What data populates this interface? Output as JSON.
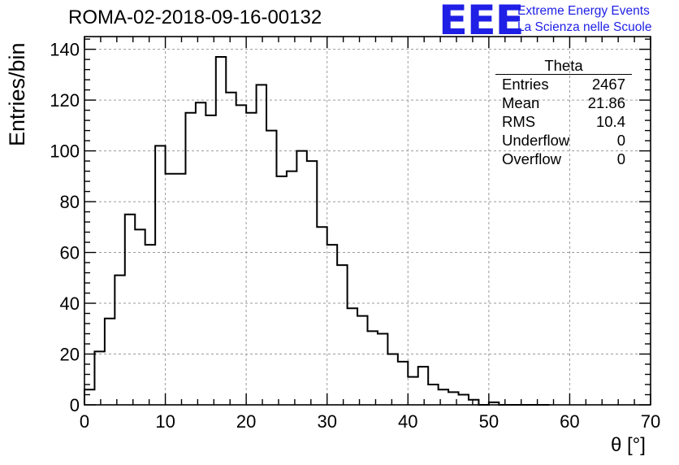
{
  "header": {
    "run_title": "ROMA-02-2018-09-16-00132",
    "logo_text": "EEE",
    "tagline_1": "Extreme Energy Events",
    "tagline_2": "La Scienza nelle Scuole"
  },
  "stats_box": {
    "title": "Theta",
    "rows": [
      {
        "label": "Entries",
        "value": "2467"
      },
      {
        "label": "Mean",
        "value": "21.86"
      },
      {
        "label": "RMS",
        "value": "10.4"
      },
      {
        "label": "Underflow",
        "value": "0"
      },
      {
        "label": "Overflow",
        "value": "0"
      }
    ]
  },
  "chart_data": {
    "type": "bar",
    "style": "step-histogram",
    "title": "ROMA-02-2018-09-16-00132",
    "xlabel": "θ [°]",
    "ylabel": "Entries/bin",
    "xlim": [
      0,
      70
    ],
    "ylim": [
      0,
      145
    ],
    "bin_width": 1.25,
    "grid": true,
    "x_ticks": [
      0,
      10,
      20,
      30,
      40,
      50,
      60,
      70
    ],
    "y_ticks": [
      0,
      20,
      40,
      60,
      80,
      100,
      120,
      140
    ],
    "x_tick_labels": [
      "0",
      "10",
      "20",
      "30",
      "40",
      "50",
      "60",
      "70"
    ],
    "y_tick_labels": [
      "0",
      "20",
      "40",
      "60",
      "80",
      "100",
      "120",
      "140"
    ],
    "series": [
      {
        "bin_lows": [
          0,
          1.25,
          2.5,
          3.75,
          5,
          6.25,
          7.5,
          8.75,
          10,
          11.25,
          12.5,
          13.75,
          15,
          16.25,
          17.5,
          18.75,
          20,
          21.25,
          22.5,
          23.75,
          25,
          26.25,
          27.5,
          28.75,
          30,
          31.25,
          32.5,
          33.75,
          35,
          36.25,
          37.5,
          38.75,
          40,
          41.25,
          42.5,
          43.75,
          45,
          46.25,
          47.5,
          48.75,
          50,
          51.25,
          52.5,
          53.75,
          55,
          56.25
        ],
        "values": [
          6,
          21,
          34,
          51,
          75,
          69,
          63,
          102,
          91,
          91,
          115,
          119,
          114,
          137,
          123,
          118,
          115,
          126,
          108,
          90,
          92,
          100,
          96,
          70,
          63,
          55,
          38,
          35,
          29,
          28,
          20,
          17,
          11,
          15,
          8,
          6,
          5,
          4,
          2,
          0,
          1,
          0,
          0,
          0,
          0,
          0
        ]
      }
    ]
  }
}
